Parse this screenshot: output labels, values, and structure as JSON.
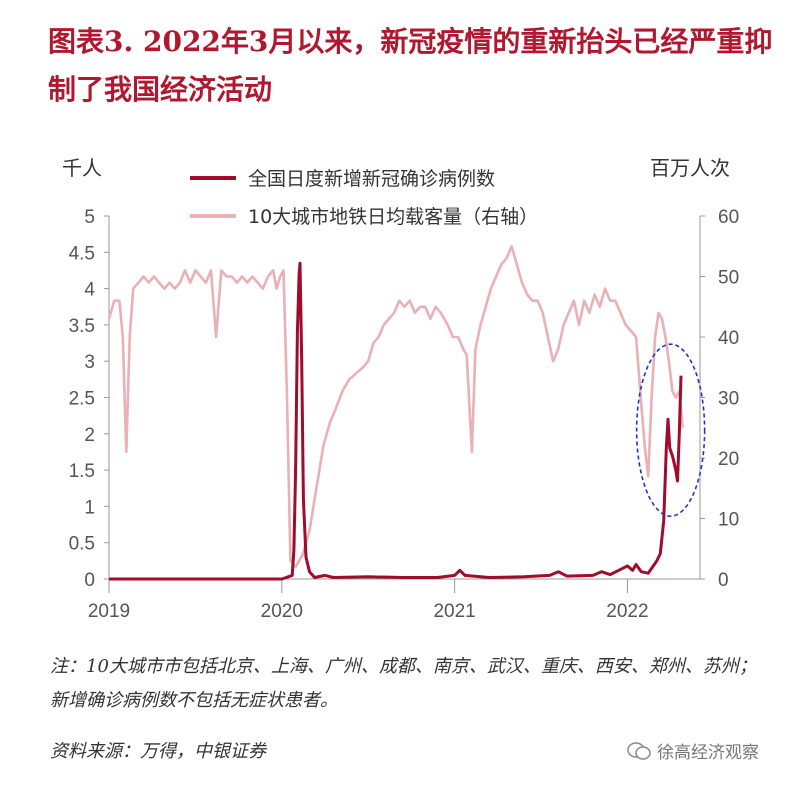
{
  "title": "图表3.  2022年3月以来，新冠疫情的重新抬头已经严重抑制了我国经济活动",
  "colors": {
    "series1": "#a00c2c",
    "series2": "#e9b0b5",
    "title": "#b01830",
    "ellipse": "#2233cc"
  },
  "chart_data": {
    "type": "line",
    "left_unit": "千人",
    "right_unit": "百万人次",
    "ylim_left": [
      0,
      5
    ],
    "ylim_right": [
      0,
      60
    ],
    "yticks_left": [
      "5",
      "4.5",
      "4",
      "3.5",
      "3",
      "2.5",
      "2",
      "1.5",
      "1",
      "0.5",
      "0"
    ],
    "yticks_right": [
      "60",
      "50",
      "40",
      "30",
      "20",
      "10",
      "0"
    ],
    "xticks": [
      "2019",
      "2020",
      "2021",
      "2022"
    ],
    "xlim": [
      2019.0,
      2022.42
    ],
    "grid": false,
    "annotation": "dashed ellipse around 2022-03 to 2022-04 spike",
    "series": [
      {
        "name": "全国日度新增新冠确诊病例数",
        "axis": "left",
        "points": [
          [
            2019.0,
            0
          ],
          [
            2019.5,
            0
          ],
          [
            2020.0,
            0
          ],
          [
            2020.06,
            0.05
          ],
          [
            2020.07,
            0.4
          ],
          [
            2020.08,
            1.5
          ],
          [
            2020.09,
            3.4
          ],
          [
            2020.1,
            4.2
          ],
          [
            2020.105,
            4.35
          ],
          [
            2020.115,
            3.0
          ],
          [
            2020.125,
            1.1
          ],
          [
            2020.14,
            0.3
          ],
          [
            2020.16,
            0.1
          ],
          [
            2020.19,
            0.02
          ],
          [
            2020.25,
            0.05
          ],
          [
            2020.3,
            0.02
          ],
          [
            2020.5,
            0.03
          ],
          [
            2020.7,
            0.02
          ],
          [
            2020.9,
            0.02
          ],
          [
            2021.0,
            0.05
          ],
          [
            2021.03,
            0.12
          ],
          [
            2021.06,
            0.05
          ],
          [
            2021.2,
            0.02
          ],
          [
            2021.4,
            0.03
          ],
          [
            2021.55,
            0.05
          ],
          [
            2021.6,
            0.1
          ],
          [
            2021.65,
            0.04
          ],
          [
            2021.8,
            0.05
          ],
          [
            2021.85,
            0.1
          ],
          [
            2021.9,
            0.06
          ],
          [
            2021.95,
            0.12
          ],
          [
            2022.0,
            0.18
          ],
          [
            2022.03,
            0.12
          ],
          [
            2022.05,
            0.2
          ],
          [
            2022.08,
            0.1
          ],
          [
            2022.12,
            0.08
          ],
          [
            2022.17,
            0.25
          ],
          [
            2022.19,
            0.35
          ],
          [
            2022.21,
            0.8
          ],
          [
            2022.225,
            1.8
          ],
          [
            2022.235,
            2.2
          ],
          [
            2022.245,
            1.8
          ],
          [
            2022.26,
            1.7
          ],
          [
            2022.28,
            1.5
          ],
          [
            2022.29,
            1.35
          ],
          [
            2022.3,
            2.0
          ],
          [
            2022.31,
            2.8
          ]
        ]
      },
      {
        "name": "10大城市地铁日均载客量（右轴）",
        "axis": "right",
        "points": [
          [
            2019.0,
            43
          ],
          [
            2019.03,
            46
          ],
          [
            2019.06,
            46
          ],
          [
            2019.08,
            40
          ],
          [
            2019.1,
            21
          ],
          [
            2019.12,
            40
          ],
          [
            2019.14,
            48
          ],
          [
            2019.17,
            49
          ],
          [
            2019.2,
            50
          ],
          [
            2019.23,
            49
          ],
          [
            2019.26,
            50
          ],
          [
            2019.29,
            49
          ],
          [
            2019.32,
            48
          ],
          [
            2019.35,
            49
          ],
          [
            2019.38,
            48
          ],
          [
            2019.41,
            49
          ],
          [
            2019.44,
            51
          ],
          [
            2019.47,
            49
          ],
          [
            2019.5,
            51
          ],
          [
            2019.53,
            50
          ],
          [
            2019.56,
            49
          ],
          [
            2019.59,
            51
          ],
          [
            2019.62,
            40
          ],
          [
            2019.65,
            51
          ],
          [
            2019.68,
            50
          ],
          [
            2019.71,
            50
          ],
          [
            2019.74,
            49
          ],
          [
            2019.77,
            50
          ],
          [
            2019.8,
            49
          ],
          [
            2019.83,
            50
          ],
          [
            2019.86,
            49
          ],
          [
            2019.89,
            48
          ],
          [
            2019.92,
            50
          ],
          [
            2019.95,
            51
          ],
          [
            2019.97,
            48
          ],
          [
            2019.99,
            50
          ],
          [
            2020.01,
            51
          ],
          [
            2020.03,
            30
          ],
          [
            2020.05,
            3
          ],
          [
            2020.08,
            2
          ],
          [
            2020.12,
            4
          ],
          [
            2020.16,
            8
          ],
          [
            2020.2,
            15
          ],
          [
            2020.24,
            22
          ],
          [
            2020.28,
            26
          ],
          [
            2020.31,
            28
          ],
          [
            2020.35,
            31
          ],
          [
            2020.39,
            33
          ],
          [
            2020.43,
            34
          ],
          [
            2020.47,
            35
          ],
          [
            2020.5,
            36
          ],
          [
            2020.53,
            39
          ],
          [
            2020.56,
            40
          ],
          [
            2020.59,
            42
          ],
          [
            2020.62,
            43
          ],
          [
            2020.65,
            44
          ],
          [
            2020.68,
            46
          ],
          [
            2020.71,
            45
          ],
          [
            2020.74,
            46
          ],
          [
            2020.77,
            44
          ],
          [
            2020.8,
            45
          ],
          [
            2020.83,
            45
          ],
          [
            2020.86,
            43
          ],
          [
            2020.89,
            45
          ],
          [
            2020.92,
            44
          ],
          [
            2020.96,
            42
          ],
          [
            2020.99,
            40
          ],
          [
            2021.02,
            40
          ],
          [
            2021.05,
            38
          ],
          [
            2021.07,
            37
          ],
          [
            2021.1,
            21
          ],
          [
            2021.12,
            38
          ],
          [
            2021.15,
            42
          ],
          [
            2021.18,
            45
          ],
          [
            2021.21,
            48
          ],
          [
            2021.24,
            50
          ],
          [
            2021.27,
            52
          ],
          [
            2021.3,
            53
          ],
          [
            2021.33,
            55
          ],
          [
            2021.36,
            52
          ],
          [
            2021.39,
            49
          ],
          [
            2021.42,
            47
          ],
          [
            2021.45,
            46
          ],
          [
            2021.48,
            46
          ],
          [
            2021.51,
            44
          ],
          [
            2021.54,
            40
          ],
          [
            2021.57,
            36
          ],
          [
            2021.6,
            38
          ],
          [
            2021.63,
            42
          ],
          [
            2021.66,
            44
          ],
          [
            2021.69,
            46
          ],
          [
            2021.72,
            42
          ],
          [
            2021.75,
            46
          ],
          [
            2021.78,
            44
          ],
          [
            2021.81,
            47
          ],
          [
            2021.84,
            45
          ],
          [
            2021.87,
            48
          ],
          [
            2021.9,
            46
          ],
          [
            2021.93,
            46
          ],
          [
            2021.96,
            44
          ],
          [
            2021.99,
            42
          ],
          [
            2022.02,
            41
          ],
          [
            2022.05,
            40
          ],
          [
            2022.08,
            29
          ],
          [
            2022.1,
            22
          ],
          [
            2022.12,
            17
          ],
          [
            2022.14,
            30
          ],
          [
            2022.16,
            40
          ],
          [
            2022.18,
            44
          ],
          [
            2022.2,
            43
          ],
          [
            2022.22,
            40
          ],
          [
            2022.24,
            36
          ],
          [
            2022.26,
            31
          ],
          [
            2022.28,
            30
          ],
          [
            2022.3,
            31
          ],
          [
            2022.32,
            25
          ]
        ]
      }
    ]
  },
  "legend": {
    "item1": "全国日度新增新冠确诊病例数",
    "item2": "10大城市地铁日均载客量（右轴）"
  },
  "note": "注：10大城市市包括北京、上海、广州、成都、南京、武汉、重庆、西安、郑州、苏州；新增确诊病例数不包括无症状患者。",
  "source": "资料来源：万得，中银证券",
  "watermark": "徐高经济观察"
}
